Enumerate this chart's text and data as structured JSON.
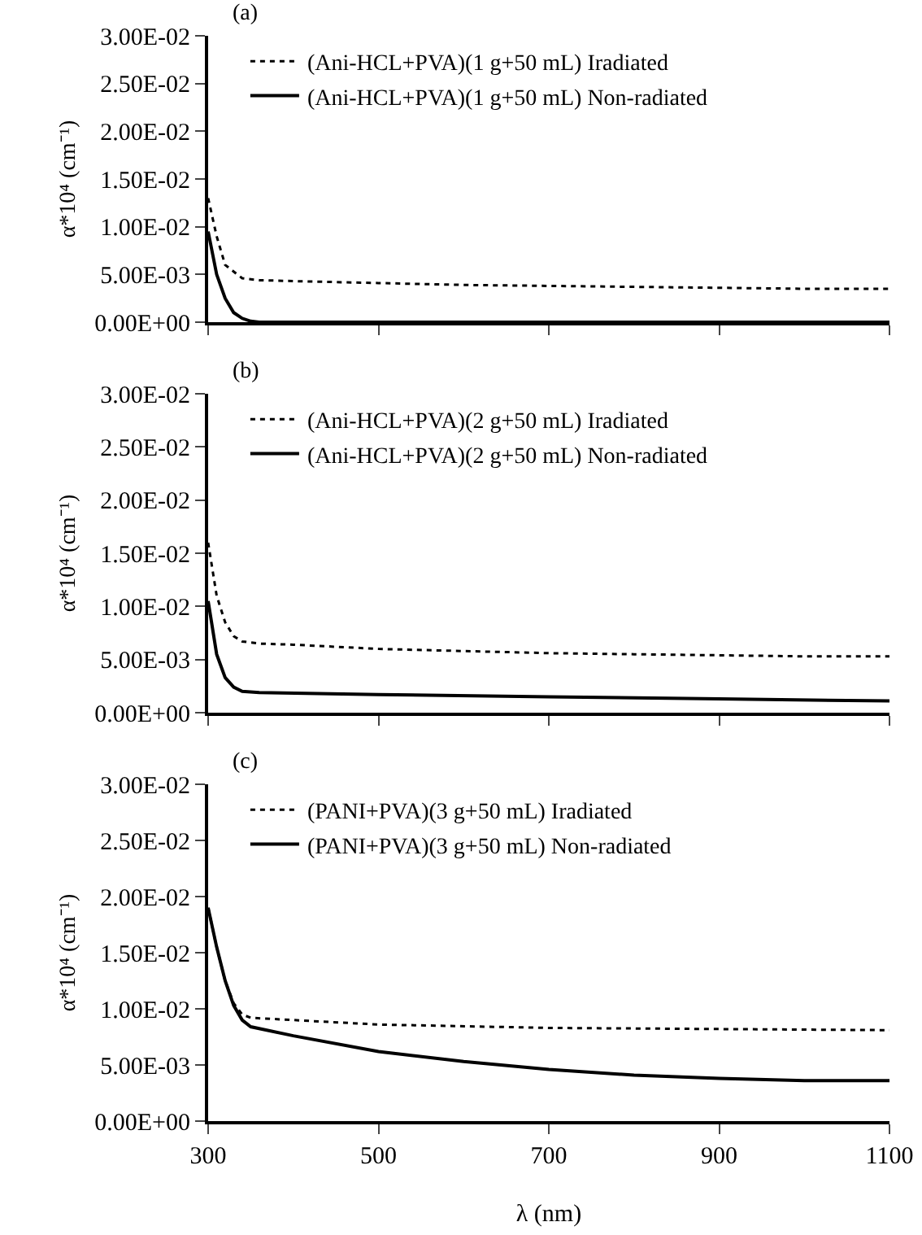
{
  "chart_data": [
    {
      "type": "line",
      "title": "(a)",
      "ylabel": "α*10⁴ (cm⁻¹)",
      "xlim": [
        300,
        1100
      ],
      "xticks": [
        300,
        500,
        700,
        900,
        1100
      ],
      "ylim": [
        0,
        0.03
      ],
      "yticks": [
        {
          "value": 0,
          "label": "0.00E+00"
        },
        {
          "value": 0.005,
          "label": "5.00E-03"
        },
        {
          "value": 0.01,
          "label": "1.00E-02"
        },
        {
          "value": 0.015,
          "label": "1.50E-02"
        },
        {
          "value": 0.02,
          "label": "2.00E-02"
        },
        {
          "value": 0.025,
          "label": "2.50E-02"
        },
        {
          "value": 0.03,
          "label": "3.00E-02"
        }
      ],
      "tick_labels": "y",
      "grid": false,
      "legend": "top",
      "marker": "none",
      "series": [
        {
          "name": "(Ani-HCL+PVA)(1 g+50 mL) Iradiated",
          "color": "#000000",
          "line_style": "dotted",
          "x": [
            300,
            310,
            320,
            340,
            360,
            400,
            500,
            600,
            700,
            800,
            900,
            1000,
            1100
          ],
          "values": [
            0.013,
            0.009,
            0.006,
            0.0046,
            0.0044,
            0.0043,
            0.0041,
            0.0039,
            0.0038,
            0.0037,
            0.0036,
            0.0035,
            0.0035
          ]
        },
        {
          "name": "(Ani-HCL+PVA)(1 g+50 mL) Non-radiated",
          "color": "#000000",
          "line_style": "solid",
          "x": [
            300,
            310,
            320,
            330,
            340,
            350,
            360,
            1100
          ],
          "values": [
            0.0095,
            0.005,
            0.0025,
            0.001,
            0.0004,
            0.0001,
            0,
            0
          ]
        }
      ]
    },
    {
      "type": "line",
      "title": "(b)",
      "ylabel": "α*10⁴ (cm⁻¹)",
      "xlim": [
        300,
        1100
      ],
      "xticks": [
        300,
        500,
        700,
        900,
        1100
      ],
      "ylim": [
        0,
        0.03
      ],
      "yticks": [
        {
          "value": 0,
          "label": "0.00E+00"
        },
        {
          "value": 0.005,
          "label": "5.00E-03"
        },
        {
          "value": 0.01,
          "label": "1.00E-02"
        },
        {
          "value": 0.015,
          "label": "1.50E-02"
        },
        {
          "value": 0.02,
          "label": "2.00E-02"
        },
        {
          "value": 0.025,
          "label": "2.50E-02"
        },
        {
          "value": 0.03,
          "label": "3.00E-02"
        }
      ],
      "tick_labels": "y",
      "grid": false,
      "legend": "top",
      "marker": "none",
      "series": [
        {
          "name": "(Ani-HCL+PVA)(2 g+50 mL) Iradiated",
          "color": "#000000",
          "line_style": "dotted",
          "x": [
            300,
            310,
            320,
            330,
            340,
            360,
            400,
            500,
            600,
            700,
            800,
            900,
            1000,
            1100
          ],
          "values": [
            0.016,
            0.011,
            0.0085,
            0.0072,
            0.0067,
            0.0065,
            0.0064,
            0.006,
            0.0058,
            0.0056,
            0.0055,
            0.0054,
            0.0053,
            0.0053
          ]
        },
        {
          "name": "(Ani-HCL+PVA)(2 g+50 mL) Non-radiated",
          "color": "#000000",
          "line_style": "solid",
          "x": [
            300,
            310,
            320,
            330,
            340,
            360,
            500,
            700,
            900,
            1100
          ],
          "values": [
            0.0105,
            0.0055,
            0.0033,
            0.0024,
            0.002,
            0.0019,
            0.0017,
            0.0015,
            0.0013,
            0.0011
          ]
        }
      ]
    },
    {
      "type": "line",
      "title": "(c)",
      "ylabel": "α*10⁴ (cm⁻¹)",
      "xlabel": "λ (nm)",
      "xlim": [
        300,
        1100
      ],
      "xticks": [
        300,
        500,
        700,
        900,
        1100
      ],
      "ylim": [
        0,
        0.03
      ],
      "yticks": [
        {
          "value": 0,
          "label": "0.00E+00"
        },
        {
          "value": 0.005,
          "label": "5.00E-03"
        },
        {
          "value": 0.01,
          "label": "1.00E-02"
        },
        {
          "value": 0.015,
          "label": "1.50E-02"
        },
        {
          "value": 0.02,
          "label": "2.00E-02"
        },
        {
          "value": 0.025,
          "label": "2.50E-02"
        },
        {
          "value": 0.03,
          "label": "3.00E-02"
        }
      ],
      "grid": false,
      "legend": "top",
      "marker": "none",
      "series": [
        {
          "name": "(PANI+PVA)(3 g+50 mL) Iradiated",
          "color": "#000000",
          "line_style": "dotted",
          "x": [
            300,
            310,
            320,
            330,
            340,
            350,
            400,
            500,
            700,
            900,
            1100
          ],
          "values": [
            0.019,
            0.0155,
            0.0125,
            0.0105,
            0.0095,
            0.0092,
            0.009,
            0.0086,
            0.0083,
            0.0082,
            0.0081
          ]
        },
        {
          "name": "(PANI+PVA)(3 g+50 mL) Non-radiated",
          "color": "#000000",
          "line_style": "solid",
          "x": [
            300,
            310,
            320,
            330,
            340,
            350,
            400,
            500,
            600,
            700,
            800,
            900,
            1000,
            1100
          ],
          "values": [
            0.019,
            0.0155,
            0.0125,
            0.0103,
            0.009,
            0.0084,
            0.0076,
            0.0062,
            0.0053,
            0.0046,
            0.0041,
            0.0038,
            0.0036,
            0.0036
          ]
        }
      ]
    }
  ]
}
